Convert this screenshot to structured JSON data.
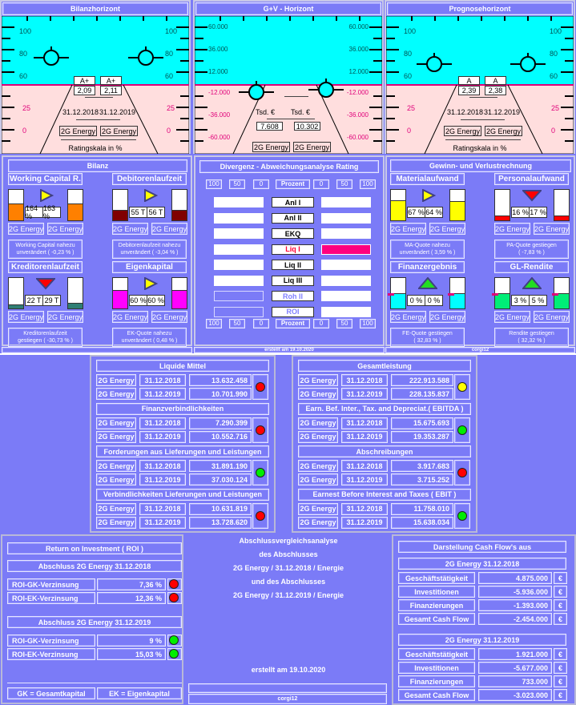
{
  "colors": {
    "background": "#7b7bf7",
    "sky": "#00ffff",
    "ground": "#ffdede",
    "horizon_line": "#e0007a",
    "red": "#ff0000",
    "green": "#00ee00",
    "yellow": "#ffff00"
  },
  "horizons": [
    {
      "title": "Bilanzhorizont",
      "upper_ticks": [
        "100",
        "80",
        "60"
      ],
      "lower_ticks": [
        "25",
        "0"
      ],
      "top_labels": [
        "A+",
        "A+"
      ],
      "scores": [
        "2,09",
        "2,11"
      ],
      "dates": [
        "31.12.2018",
        "31.12.2019"
      ],
      "companies": [
        "2G Energy",
        "2G Energy"
      ],
      "footer": "Ratingskala in %"
    },
    {
      "title": "G+V - Horizont",
      "upper_ticks": [
        "60.000",
        "36.000",
        "12.000"
      ],
      "lower_ticks": [
        "-12.000",
        "-36.000",
        "-60.000"
      ],
      "units": [
        "Tsd. €",
        "Tsd. €"
      ],
      "values": [
        "7.608",
        "10.302"
      ],
      "companies": [
        "2G Energy",
        "2G Energy"
      ]
    },
    {
      "title": "Prognosehorizont",
      "upper_ticks": [
        "100",
        "80",
        "60"
      ],
      "lower_ticks": [
        "25",
        "0"
      ],
      "top_labels": [
        "A",
        "A"
      ],
      "scores": [
        "2,39",
        "2,38"
      ],
      "dates": [
        "31.12.2018",
        "31.12.2019"
      ],
      "companies": [
        "2G Energy",
        "2G Energy"
      ],
      "footer": "Ratingskala in %"
    }
  ],
  "bilanz": {
    "title": "Bilanz",
    "cards": [
      {
        "title": "Working Capital R.",
        "values": [
          "164 %",
          "163 %"
        ],
        "fill": [
          0.55,
          0.55
        ],
        "color": "#ff8000",
        "arrow": "right",
        "companies": [
          "2G Energy",
          "2G Energy"
        ],
        "comment": [
          "Working Capital nahezu",
          "unverändert  ( -0,23 % )"
        ]
      },
      {
        "title": "Debitorenlaufzeit",
        "values": [
          "55 T",
          "56 T"
        ],
        "fill": [
          0.33,
          0.35
        ],
        "color": "#800000",
        "arrow": "right",
        "companies": [
          "2G Energy",
          "2G Energy"
        ],
        "comment": [
          "Debitorenlaufzeit nahezu",
          "unverändert  ( -3,04 % )"
        ]
      },
      {
        "title": "Kreditorenlaufzeit",
        "values": [
          "22 T",
          "29 T"
        ],
        "fill": [
          0.12,
          0.18
        ],
        "color": "#2f7f74",
        "arrow": "down",
        "companies": [
          "2G Energy",
          "2G Energy"
        ],
        "comment": [
          "Kreditorenlaufzeit",
          "gestiegen ( -30,73 % )"
        ]
      },
      {
        "title": "Eigenkapital",
        "values": [
          "60 %",
          "60 %"
        ],
        "fill": [
          0.6,
          0.6
        ],
        "color": "#ff00ff",
        "arrow": "right",
        "companies": [
          "2G Energy",
          "2G Energy"
        ],
        "comment": [
          "EK-Quote nahezu",
          "unverändert  ( 0,48 % )"
        ]
      }
    ]
  },
  "divergenz": {
    "title": "Divergenz - Abweichungsanalyse Rating",
    "scale": [
      "100",
      "50",
      "0",
      "Prozent",
      "0",
      "50",
      "100"
    ],
    "rows": [
      {
        "label": "Anl I",
        "left": "white",
        "right": "white",
        "label_color": "#000000"
      },
      {
        "label": "Anl II",
        "left": "white",
        "right": "white",
        "label_color": "#000000"
      },
      {
        "label": "EKQ",
        "left": "white",
        "right": "white",
        "label_color": "#000000"
      },
      {
        "label": "Liq I",
        "left": "white",
        "right": "#ff007f",
        "label_color": "#ff0033"
      },
      {
        "label": "Liq II",
        "left": "white",
        "right": "white",
        "label_color": "#000000"
      },
      {
        "label": "Liq III",
        "left": "white",
        "right": "white",
        "label_color": "#000000"
      },
      {
        "label": "Roh II",
        "left": "empty",
        "right": "white",
        "label_color": "#8080ff"
      },
      {
        "label": "ROI",
        "left": "empty",
        "right": "white",
        "label_color": "#8080ff"
      }
    ]
  },
  "guv": {
    "title": "Gewinn- und Verlustrechnung",
    "cards": [
      {
        "title": "Materialaufwand",
        "values": [
          "67 %",
          "64 %"
        ],
        "fill": [
          0.67,
          0.64
        ],
        "color": "#ffff00",
        "arrow": "right",
        "companies": [
          "2G Energy",
          "2G Energy"
        ],
        "comment": [
          "MA-Quote nahezu",
          "unverändert ( 3,59 % )"
        ]
      },
      {
        "title": "Personalaufwand",
        "values": [
          "16 %",
          "17 %"
        ],
        "fill": [
          0.16,
          0.17
        ],
        "color": "#ff0000",
        "arrow": "down",
        "companies": [
          "2G Energy",
          "2G Energy"
        ],
        "comment": [
          "PA-Quote gestiegen",
          "( -7,83 % )"
        ]
      },
      {
        "title": "Finanzergebnis",
        "values": [
          "0 %",
          "0 %"
        ],
        "fill": [
          0.5,
          0.5
        ],
        "color": "#00ffff",
        "arrow": "up",
        "companies": [
          "2G Energy",
          "2G Energy"
        ],
        "comment": [
          "FE-Quote gestiegen",
          "( 32,83 % )"
        ]
      },
      {
        "title": "GL-Rendite",
        "values": [
          "3 %",
          "5 %"
        ],
        "fill": [
          0.5,
          0.5
        ],
        "color": "#00ee77",
        "arrow": "up",
        "companies": [
          "2G Energy",
          "2G Energy"
        ],
        "comment": [
          "Rendite gestiegen",
          "( 32,32 % )"
        ]
      }
    ]
  },
  "strip": {
    "created": "erstellt am 19.10.2020",
    "user": "corgi12"
  },
  "tables_left": [
    {
      "title": "Liquide Mittel",
      "rows": [
        [
          "2G Energy",
          "31.12.2018",
          "13.632.458"
        ],
        [
          "2G Energy",
          "31.12.2019",
          "10.701.990"
        ]
      ],
      "status": "red"
    },
    {
      "title": "Finanzverbindlichkeiten",
      "rows": [
        [
          "2G Energy",
          "31.12.2018",
          "7.290.399"
        ],
        [
          "2G Energy",
          "31.12.2019",
          "10.552.716"
        ]
      ],
      "status": "red"
    },
    {
      "title": "Forderungen aus Lieferungen und Leistungen",
      "rows": [
        [
          "2G Energy",
          "31.12.2018",
          "31.891.190"
        ],
        [
          "2G Energy",
          "31.12.2019",
          "37.030.124"
        ]
      ],
      "status": "green"
    },
    {
      "title": "Verbindlichkeiten Lieferungen und Leistungen",
      "rows": [
        [
          "2G Energy",
          "31.12.2018",
          "10.631.819"
        ],
        [
          "2G Energy",
          "31.12.2019",
          "13.728.620"
        ]
      ],
      "status": "red"
    }
  ],
  "tables_right": [
    {
      "title": "Gesamtleistung",
      "rows": [
        [
          "2G Energy",
          "31.12.2018",
          "222.913.588"
        ],
        [
          "2G Energy",
          "31.12.2019",
          "228.135.837"
        ]
      ],
      "status": "yellow"
    },
    {
      "title": "Earn. Bef. Inter., Tax. and Depreciat.( EBITDA )",
      "rows": [
        [
          "2G Energy",
          "31.12.2018",
          "15.675.693"
        ],
        [
          "2G Energy",
          "31.12.2019",
          "19.353.287"
        ]
      ],
      "status": "green"
    },
    {
      "title": "Abschreibungen",
      "rows": [
        [
          "2G Energy",
          "31.12.2018",
          "3.917.683"
        ],
        [
          "2G Energy",
          "31.12.2019",
          "3.715.252"
        ]
      ],
      "status": "red"
    },
    {
      "title": "Earnest Before Interest and Taxes ( EBIT )",
      "rows": [
        [
          "2G Energy",
          "31.12.2018",
          "11.758.010"
        ],
        [
          "2G Energy",
          "31.12.2019",
          "15.638.034"
        ]
      ],
      "status": "green"
    }
  ],
  "roi": {
    "title": "Return on Investment ( ROI )",
    "sections": [
      {
        "header": "Abschluss  2G Energy  31.12.2018",
        "rows": [
          {
            "label": "ROI-GK-Verzinsung",
            "value": "7,36 %",
            "status": "red"
          },
          {
            "label": "ROI-EK-Verzinsung",
            "value": "12,36 %",
            "status": "red"
          }
        ]
      },
      {
        "header": "Abschluss  2G Energy  31.12.2019",
        "rows": [
          {
            "label": "ROI-GK-Verzinsung",
            "value": "9 %",
            "status": "green"
          },
          {
            "label": "ROI-EK-Verzinsung",
            "value": "15,03 %",
            "status": "green"
          }
        ]
      }
    ],
    "legend": [
      "GK = Gesamtkapital",
      "EK = Eigenkapital"
    ]
  },
  "center": {
    "lines": [
      "Abschlussvergleichsanalyse",
      "des Abschlusses",
      "2G Energy / 31.12.2018 / Energie",
      "und des Abschlusses",
      "2G Energy / 31.12.2019 / Energie"
    ],
    "created": "erstellt am 19.10.2020",
    "user": "corgi12"
  },
  "cashflow": {
    "title": "Darstellung Cash Flow's aus",
    "currency": "€",
    "sections": [
      {
        "header": "2G Energy  31.12.2018",
        "rows": [
          [
            "Geschäftstätigkeit",
            "4.875.000"
          ],
          [
            "Investitionen",
            "-5.936.000"
          ],
          [
            "Finanzierungen",
            "-1.393.000"
          ],
          [
            "Gesamt Cash Flow",
            "-2.454.000"
          ]
        ]
      },
      {
        "header": "2G Energy  31.12.2019",
        "rows": [
          [
            "Geschäftstätigkeit",
            "1.921.000"
          ],
          [
            "Investitionen",
            "-5.677.000"
          ],
          [
            "Finanzierungen",
            "733.000"
          ],
          [
            "Gesamt Cash Flow",
            "-3.023.000"
          ]
        ]
      }
    ]
  }
}
